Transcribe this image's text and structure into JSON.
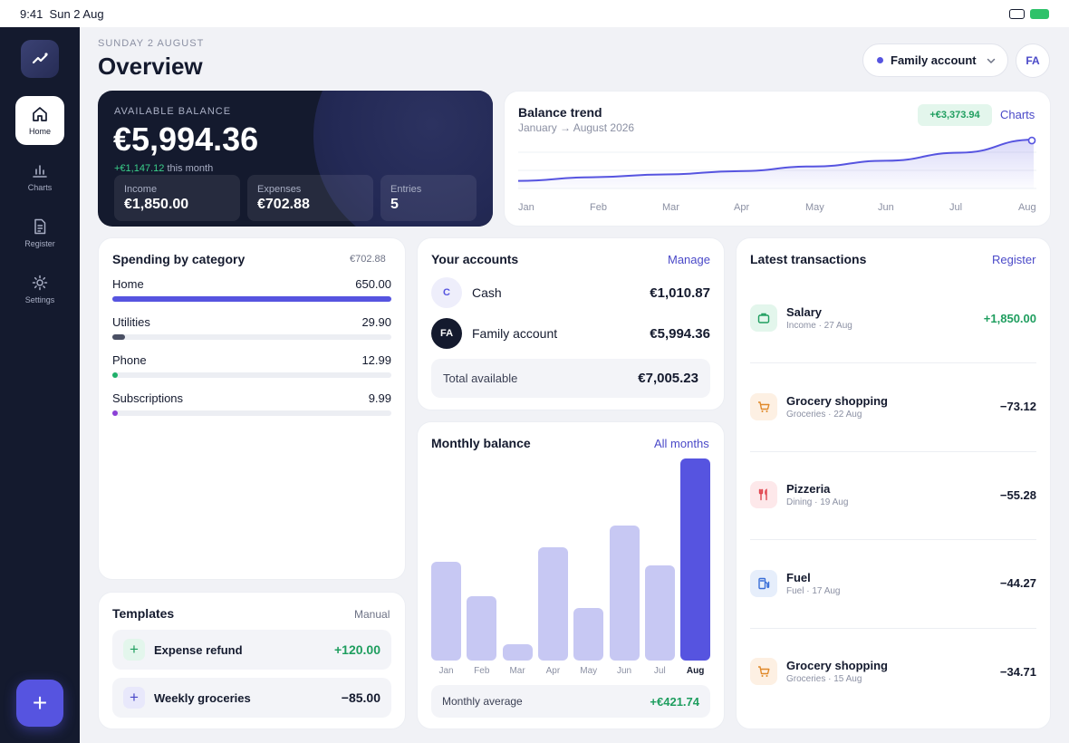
{
  "status_bar": {
    "time": "9:41",
    "date": "Sun 2 Aug"
  },
  "sidebar": {
    "items": [
      {
        "label": "Home",
        "icon": "home-icon"
      },
      {
        "label": "Charts",
        "icon": "bar-chart-icon"
      },
      {
        "label": "Register",
        "icon": "document-icon"
      },
      {
        "label": "Settings",
        "icon": "gear-icon"
      }
    ],
    "add_label": "+"
  },
  "header": {
    "date": "SUNDAY 2 AUGUST",
    "title": "Overview",
    "account": "Family account",
    "avatar": "FA"
  },
  "balance": {
    "label": "AVAILABLE BALANCE",
    "amount": "€5,994.36",
    "change": "+€1,147.12",
    "change_suffix": "this month",
    "stats": [
      {
        "label": "Income",
        "value": "€1,850.00"
      },
      {
        "label": "Expenses",
        "value": "€702.88"
      },
      {
        "label": "Entries",
        "value": "5"
      }
    ]
  },
  "trend": {
    "title": "Balance trend",
    "subtitle": "January → August 2026",
    "badge": "+€3,373.94",
    "link": "Charts"
  },
  "spending": {
    "title": "Spending by category",
    "total": "€702.88",
    "categories": [
      {
        "name": "Home",
        "value": "650.00",
        "fraction": 1.0,
        "color": "#5654e0"
      },
      {
        "name": "Utilities",
        "value": "29.90",
        "fraction": 0.046,
        "color": "#4a5064"
      },
      {
        "name": "Phone",
        "value": "12.99",
        "fraction": 0.02,
        "color": "#1fb06a"
      },
      {
        "name": "Subscriptions",
        "value": "9.99",
        "fraction": 0.015,
        "color": "#8b3fd6"
      }
    ]
  },
  "accounts": {
    "title": "Your accounts",
    "link": "Manage",
    "items": [
      {
        "initials": "C",
        "name": "Cash",
        "value": "€1,010.87"
      },
      {
        "initials": "FA",
        "name": "Family account",
        "value": "€5,994.36"
      }
    ],
    "total_label": "Total available",
    "total_value": "€7,005.23"
  },
  "monthly": {
    "title": "Monthly balance",
    "link": "All months",
    "avg_label": "Monthly average",
    "avg_value": "+€421.74"
  },
  "templates": {
    "title": "Templates",
    "link": "Manual",
    "items": [
      {
        "name": "Expense refund",
        "value": "+120.00"
      },
      {
        "name": "Weekly groceries",
        "value": "−85.00"
      }
    ]
  },
  "transactions": {
    "title": "Latest transactions",
    "link": "Register",
    "items": [
      {
        "name": "Salary",
        "sub": "Income · 27 Aug",
        "value": "+1,850.00",
        "icon": "briefcase-icon"
      },
      {
        "name": "Grocery shopping",
        "sub": "Groceries · 22 Aug",
        "value": "−73.12",
        "icon": "cart-icon"
      },
      {
        "name": "Pizzeria",
        "sub": "Dining · 19 Aug",
        "value": "−55.28",
        "icon": "fork-knife-icon"
      },
      {
        "name": "Fuel",
        "sub": "Fuel · 17 Aug",
        "value": "−44.27",
        "icon": "fuel-pump-icon"
      },
      {
        "name": "Grocery shopping",
        "sub": "Groceries · 15 Aug",
        "value": "−34.71",
        "icon": "cart-icon"
      }
    ]
  },
  "chart_data": [
    {
      "type": "line",
      "title": "Balance trend",
      "x": [
        "Jan",
        "Feb",
        "Mar",
        "Apr",
        "May",
        "Jun",
        "Jul",
        "Aug"
      ],
      "y": [
        2620,
        2920,
        3150,
        3420,
        3800,
        4270,
        4930,
        5994.36
      ],
      "ylim": [
        2000,
        6000
      ],
      "grid": true
    },
    {
      "type": "bar",
      "title": "Monthly balance",
      "categories": [
        "Jan",
        "Feb",
        "Mar",
        "Apr",
        "May",
        "Jun",
        "Jul",
        "Aug"
      ],
      "values": [
        0.49,
        0.32,
        0.08,
        0.56,
        0.26,
        0.67,
        0.47,
        1.0
      ],
      "highlight": "Aug"
    }
  ]
}
